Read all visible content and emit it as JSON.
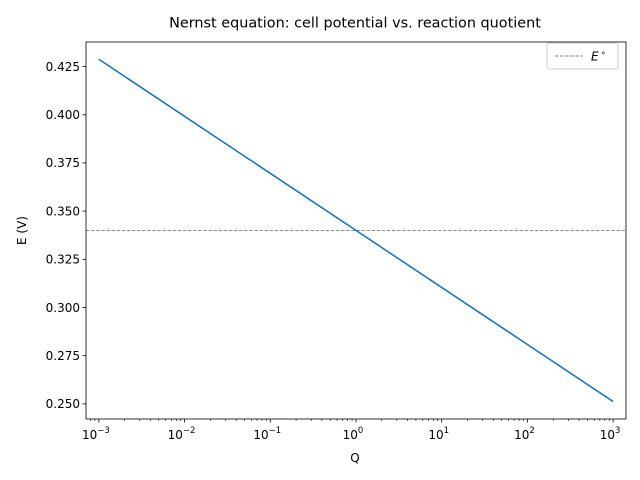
{
  "chart_data": {
    "type": "line",
    "title": "Nernst equation: cell potential vs. reaction quotient",
    "xlabel": "Q",
    "ylabel": "E (V)",
    "xscale": "log",
    "xlim": [
      0.000708,
      1413
    ],
    "ylim": [
      0.24215,
      0.43775
    ],
    "x_ticks": [
      {
        "value": 0.001,
        "base": "10",
        "exp": "−3"
      },
      {
        "value": 0.01,
        "base": "10",
        "exp": "−2"
      },
      {
        "value": 0.1,
        "base": "10",
        "exp": "−1"
      },
      {
        "value": 1,
        "base": "10",
        "exp": "0"
      },
      {
        "value": 10,
        "base": "10",
        "exp": "1"
      },
      {
        "value": 100,
        "base": "10",
        "exp": "2"
      },
      {
        "value": 1000,
        "base": "10",
        "exp": "3"
      }
    ],
    "y_ticks": [
      "0.250",
      "0.275",
      "0.300",
      "0.325",
      "0.350",
      "0.375",
      "0.400",
      "0.425"
    ],
    "series": [
      {
        "x": [
          0.001,
          1000
        ],
        "y": [
          0.4288,
          0.2512
        ],
        "color": "#1f77b4"
      }
    ],
    "reference_lines": [
      {
        "name": "E°",
        "y": 0.34,
        "style": "dashed",
        "color": "#808080"
      }
    ],
    "legend": {
      "position": "top-right",
      "entries": [
        {
          "base": "E",
          "sup": "∘",
          "style": "dashed",
          "color": "#808080"
        }
      ]
    },
    "grid": false
  }
}
